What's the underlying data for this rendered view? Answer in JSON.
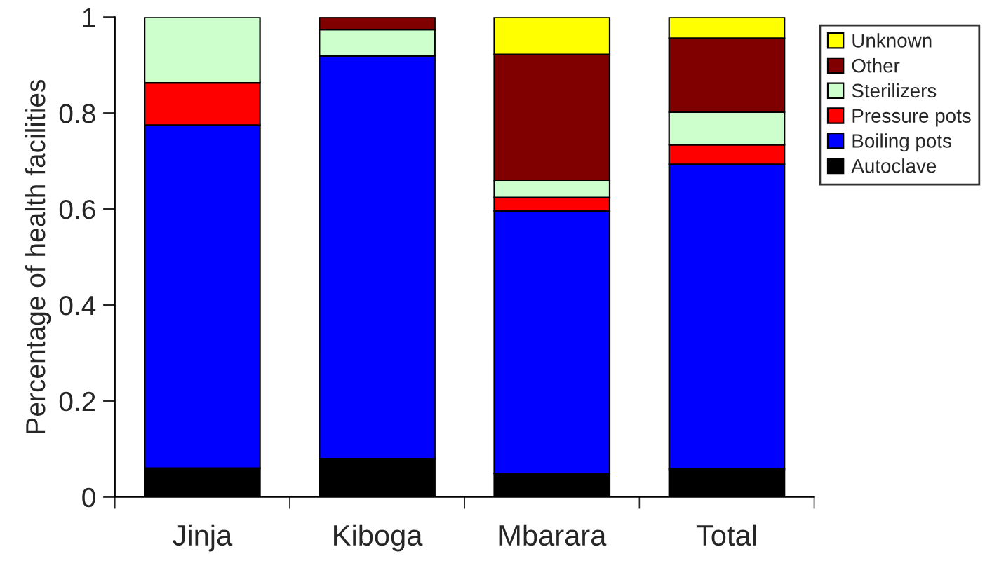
{
  "chart_data": {
    "type": "bar",
    "stacked": true,
    "ylabel": "Percentage of health facilities",
    "categories": [
      "Jinja",
      "Kiboga",
      "Mbarara",
      "Total"
    ],
    "series": [
      {
        "name": "Autoclave",
        "color": "#000000",
        "values": [
          0.06,
          0.08,
          0.049,
          0.058
        ]
      },
      {
        "name": "Boiling pots",
        "color": "#0000ff",
        "values": [
          0.715,
          0.839,
          0.547,
          0.635
        ]
      },
      {
        "name": "Pressure pots",
        "color": "#ff0000",
        "values": [
          0.088,
          null,
          0.028,
          0.041
        ]
      },
      {
        "name": "Sterilizers",
        "color": "#ccffcc",
        "values": [
          0.137,
          0.055,
          0.036,
          0.068
        ]
      },
      {
        "name": "Other",
        "color": "#800000",
        "values": [
          null,
          0.026,
          0.262,
          0.154
        ]
      },
      {
        "name": "Unknown",
        "color": "#ffff00",
        "values": [
          null,
          null,
          0.078,
          0.044
        ]
      }
    ],
    "ylim": [
      0,
      1
    ],
    "yticks": [
      0,
      0.2,
      0.4,
      0.6,
      0.8,
      1
    ],
    "grid": false,
    "legend": "top right"
  }
}
